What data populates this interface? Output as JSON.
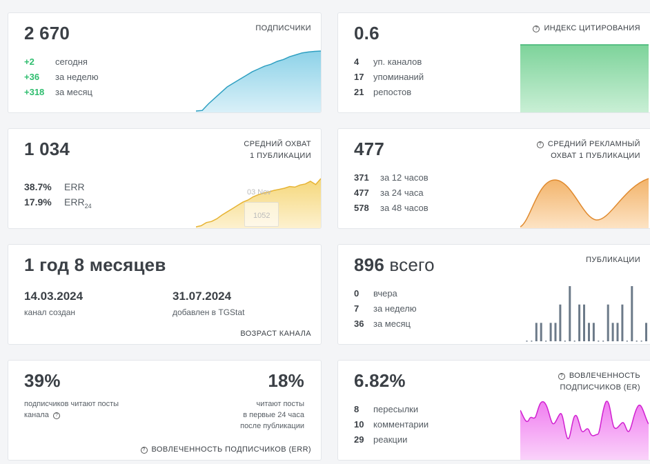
{
  "subscribers": {
    "value": "2 670",
    "caption": "ПОДПИСЧИКИ",
    "rows": [
      {
        "num": "+2",
        "label": "сегодня"
      },
      {
        "num": "+36",
        "label": "за неделю"
      },
      {
        "num": "+318",
        "label": "за месяц"
      }
    ],
    "color": "#2e9fc1",
    "chart_data": {
      "type": "area",
      "values": [
        2352,
        2355,
        2390,
        2420,
        2450,
        2480,
        2500,
        2520,
        2540,
        2560,
        2575,
        2590,
        2600,
        2615,
        2625,
        2640,
        2650,
        2660,
        2665,
        2668,
        2670
      ]
    }
  },
  "citation": {
    "value": "0.6",
    "caption": "ИНДЕКС ЦИТИРОВАНИЯ",
    "rows": [
      {
        "num": "4",
        "label": "уп. каналов"
      },
      {
        "num": "17",
        "label": "упоминаний"
      },
      {
        "num": "21",
        "label": "репостов"
      }
    ],
    "color": "#3cb371"
  },
  "reach": {
    "value": "1 034",
    "caption_line1": "СРЕДНИЙ ОХВАТ",
    "caption_line2": "1 ПУБЛИКАЦИИ",
    "err": {
      "num": "38.7%",
      "label": "ERR"
    },
    "err24": {
      "num": "17.9%",
      "label": "ERR",
      "sub": "24"
    },
    "tooltip_date": "03 Nov",
    "tooltip_value": "1052",
    "color": "#e6b333",
    "chart_data": {
      "type": "area",
      "values": [
        300,
        320,
        380,
        400,
        450,
        520,
        580,
        640,
        700,
        760,
        800,
        860,
        900,
        930,
        950,
        980,
        1000,
        1020,
        1052,
        1040,
        1080,
        1100,
        1150,
        1090,
        1200
      ]
    }
  },
  "ad_reach": {
    "value": "477",
    "caption_line1": "СРЕДНИЙ РЕКЛАМНЫЙ",
    "caption_line2": "ОХВАТ 1 ПУБЛИКАЦИИ",
    "rows": [
      {
        "num": "371",
        "label": "за 12 часов"
      },
      {
        "num": "477",
        "label": "за 24 часа"
      },
      {
        "num": "578",
        "label": "за 48 часов"
      }
    ],
    "color": "#e08a2e"
  },
  "age": {
    "value": "1 год 8 месяцев",
    "created_date": "14.03.2024",
    "created_label": "канал создан",
    "added_date": "31.07.2024",
    "added_label": "добавлен в TGStat",
    "caption": "ВОЗРАСТ КАНАЛА"
  },
  "posts": {
    "value": "896",
    "unit": "всего",
    "caption": "ПУБЛИКАЦИИ",
    "rows": [
      {
        "num": "0",
        "label": "вчера"
      },
      {
        "num": "7",
        "label": "за неделю"
      },
      {
        "num": "36",
        "label": "за месяц"
      }
    ],
    "color": "#6c7a89",
    "chart_data": {
      "type": "bar",
      "values": [
        0,
        0,
        1,
        1,
        0,
        1,
        1,
        2,
        0,
        3,
        0,
        2,
        2,
        1,
        1,
        0,
        0,
        2,
        1,
        1,
        2,
        0,
        3,
        0,
        0,
        1
      ]
    }
  },
  "err": {
    "value1": "39%",
    "text1_line1": "подписчиков читают посты",
    "text1_line2": "канала",
    "value2": "18%",
    "text2_line1": "читают посты",
    "text2_line2": "в первые 24 часа",
    "text2_line3": "после публикации",
    "caption": "ВОВЛЕЧЕННОСТЬ ПОДПИСЧИКОВ (ERR)"
  },
  "er": {
    "value": "6.82%",
    "caption_line1": "ВОВЛЕЧЕННОСТЬ",
    "caption_line2": "ПОДПИСЧИКОВ (ER)",
    "rows": [
      {
        "num": "8",
        "label": "пересылки"
      },
      {
        "num": "10",
        "label": "комментарии"
      },
      {
        "num": "29",
        "label": "реакции"
      }
    ],
    "color": "#e040e0"
  },
  "icon": "question-circle-icon"
}
